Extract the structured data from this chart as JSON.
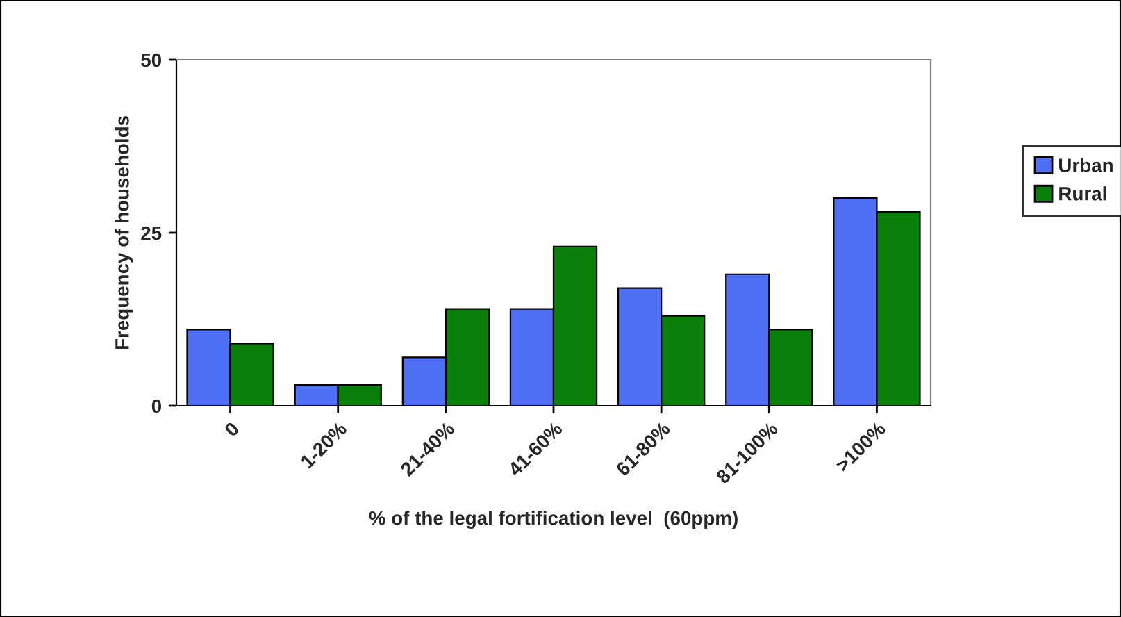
{
  "chart_data": {
    "type": "bar",
    "xlabel": "% of the legal fortification level  (60ppm)",
    "ylabel": "Frequency of households",
    "categories": [
      "0",
      "1-20%",
      "21-40%",
      "41-60%",
      "61-80%",
      "81-100%",
      ">100%"
    ],
    "series": [
      {
        "name": "Urban",
        "color": "#4f6ff5",
        "values": [
          11,
          3,
          7,
          14,
          17,
          19,
          30
        ]
      },
      {
        "name": "Rural",
        "color": "#0a800a",
        "values": [
          9,
          3,
          14,
          23,
          13,
          11,
          28
        ]
      }
    ],
    "ylim": [
      0,
      50
    ],
    "yticks": [
      0,
      25,
      50
    ],
    "grid": false,
    "legend": "right"
  }
}
